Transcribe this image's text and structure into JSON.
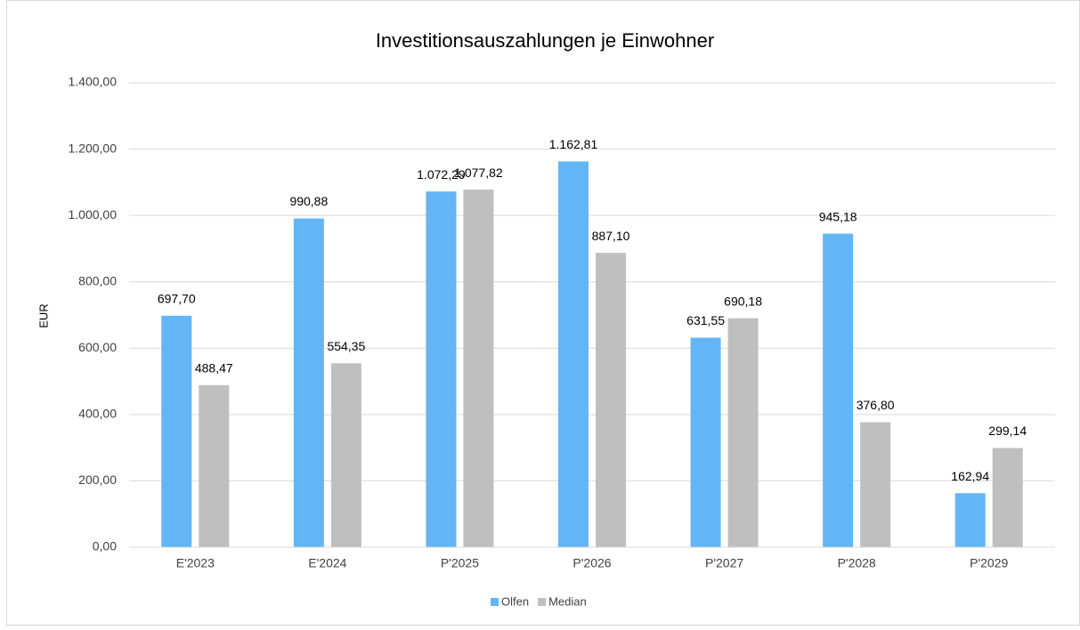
{
  "chart_data": {
    "type": "bar",
    "title": "Investitionsauszahlungen je Einwohner",
    "y_label": "EUR",
    "categories": [
      "E'2023",
      "E'2024",
      "P'2025",
      "P'2026",
      "P'2027",
      "P'2028",
      "P'2029"
    ],
    "series": [
      {
        "name": "Olfen",
        "color": "#63b5f5",
        "values": [
          697.7,
          990.88,
          1072.29,
          1162.81,
          631.55,
          945.18,
          162.94
        ],
        "value_labels": [
          "697,70",
          "990,88",
          "1.072,29",
          "1.162,81",
          "631,55",
          "945,18",
          "162,94"
        ]
      },
      {
        "name": "Median",
        "color": "#bfbfbf",
        "values": [
          488.47,
          554.35,
          1077.82,
          887.1,
          690.18,
          376.8,
          299.14
        ],
        "value_labels": [
          "488,47",
          "554,35",
          "1.077,82",
          "887,10",
          "690,18",
          "376,80",
          "299,14"
        ]
      }
    ],
    "ylim": [
      0,
      1400
    ],
    "yticks": [
      {
        "value": 0,
        "label": "0,00"
      },
      {
        "value": 200,
        "label": "200,00"
      },
      {
        "value": 400,
        "label": "400,00"
      },
      {
        "value": 600,
        "label": "600,00"
      },
      {
        "value": 800,
        "label": "800,00"
      },
      {
        "value": 1000,
        "label": "1.000,00"
      },
      {
        "value": 1200,
        "label": "1.200,00"
      },
      {
        "value": 1400,
        "label": "1.400,00"
      }
    ],
    "grid": true,
    "legend": "bottom"
  }
}
